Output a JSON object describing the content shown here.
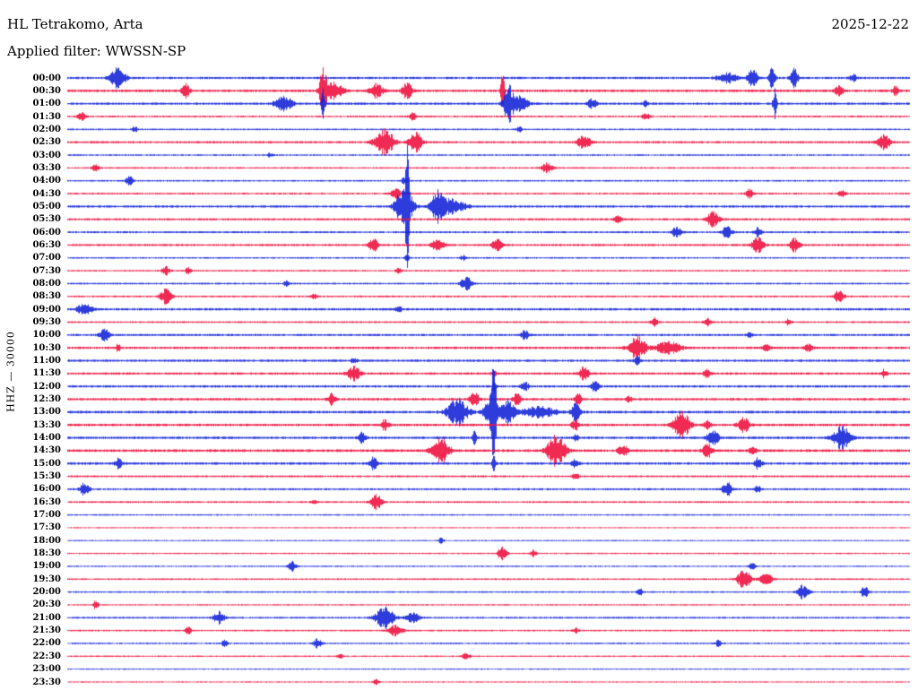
{
  "header": {
    "station": "HL Tetrakomo, Arta",
    "date": "2025-12-22",
    "filter": "Applied filter: WWSSN-SP"
  },
  "axis": {
    "label": "HHZ — 30000"
  },
  "chart_data": {
    "type": "line",
    "subtype": "helicorder-seismogram",
    "title": "HL Tetrakomo, Arta",
    "date": "2025-12-22",
    "filter": "WWSSN-SP",
    "channel": "HHZ",
    "scale": 30000,
    "trace_interval_minutes": 30,
    "x_range_minutes": [
      0,
      30
    ],
    "legend_position": "none",
    "grid": false,
    "colors": {
      "blue": "#1626d8",
      "red": "#ee1240"
    },
    "rows": [
      {
        "label": "00:00",
        "color": "blue",
        "noise": 1.3,
        "events": [
          [
            1.8,
            13,
            8
          ],
          [
            23.5,
            6,
            10
          ],
          [
            24.4,
            11,
            5
          ],
          [
            25.1,
            15,
            3
          ],
          [
            25.9,
            12,
            4
          ],
          [
            28.0,
            4,
            4
          ]
        ]
      },
      {
        "label": "00:30",
        "color": "red",
        "noise": 1.4,
        "events": [
          [
            4.2,
            9,
            4
          ],
          [
            9.1,
            26,
            4
          ],
          [
            9.5,
            9,
            10
          ],
          [
            11.0,
            8,
            7
          ],
          [
            12.1,
            11,
            5
          ],
          [
            15.5,
            24,
            2
          ],
          [
            27.5,
            5,
            5
          ],
          [
            29.5,
            6,
            3
          ]
        ]
      },
      {
        "label": "01:00",
        "color": "blue",
        "noise": 1.3,
        "events": [
          [
            7.7,
            9,
            9
          ],
          [
            9.1,
            18,
            2
          ],
          [
            15.7,
            21,
            5
          ],
          [
            16.1,
            8,
            10
          ],
          [
            18.7,
            5,
            5
          ],
          [
            20.6,
            3,
            3
          ],
          [
            25.2,
            17,
            2
          ]
        ]
      },
      {
        "label": "01:30",
        "color": "red",
        "noise": 1.0,
        "events": [
          [
            0.5,
            5,
            4
          ],
          [
            12.3,
            4,
            4
          ],
          [
            20.6,
            4,
            4
          ]
        ]
      },
      {
        "label": "02:00",
        "color": "blue",
        "noise": 0.9,
        "events": [
          [
            2.4,
            3,
            3
          ],
          [
            16.1,
            3,
            3
          ]
        ]
      },
      {
        "label": "02:30",
        "color": "red",
        "noise": 1.2,
        "events": [
          [
            11.3,
            15,
            10
          ],
          [
            12.4,
            11,
            7
          ],
          [
            18.4,
            8,
            7
          ],
          [
            29.1,
            8,
            7
          ]
        ]
      },
      {
        "label": "03:00",
        "color": "blue",
        "noise": 0.9,
        "events": [
          [
            7.2,
            2,
            3
          ]
        ]
      },
      {
        "label": "03:30",
        "color": "red",
        "noise": 0.9,
        "events": [
          [
            1.0,
            4,
            4
          ],
          [
            17.1,
            6,
            6
          ]
        ]
      },
      {
        "label": "04:00",
        "color": "blue",
        "noise": 0.9,
        "events": [
          [
            2.2,
            5,
            4
          ],
          [
            12.0,
            4,
            3
          ]
        ]
      },
      {
        "label": "04:30",
        "color": "red",
        "noise": 1.0,
        "events": [
          [
            11.7,
            6,
            5
          ],
          [
            24.3,
            5,
            4
          ],
          [
            27.6,
            4,
            4
          ]
        ]
      },
      {
        "label": "05:00",
        "color": "blue",
        "noise": 1.3,
        "events": [
          [
            12.0,
            24,
            9
          ],
          [
            12.1,
            62,
            2
          ],
          [
            13.2,
            17,
            7
          ],
          [
            13.7,
            8,
            14
          ]
        ]
      },
      {
        "label": "05:30",
        "color": "red",
        "noise": 1.2,
        "events": [
          [
            19.6,
            4,
            4
          ],
          [
            23.0,
            9,
            7
          ]
        ]
      },
      {
        "label": "06:00",
        "color": "blue",
        "noise": 1.1,
        "events": [
          [
            21.7,
            6,
            5
          ],
          [
            23.5,
            7,
            5
          ],
          [
            24.6,
            5,
            4
          ]
        ]
      },
      {
        "label": "06:30",
        "color": "red",
        "noise": 1.2,
        "events": [
          [
            10.9,
            7,
            5
          ],
          [
            13.2,
            9,
            6
          ],
          [
            15.3,
            7,
            5
          ],
          [
            24.6,
            9,
            6
          ],
          [
            25.9,
            8,
            5
          ]
        ]
      },
      {
        "label": "07:00",
        "color": "blue",
        "noise": 0.9,
        "events": [
          [
            12.1,
            7,
            2
          ],
          [
            14.1,
            3,
            3
          ]
        ]
      },
      {
        "label": "07:30",
        "color": "red",
        "noise": 0.9,
        "events": [
          [
            3.5,
            5,
            4
          ],
          [
            4.3,
            4,
            3
          ],
          [
            11.8,
            3,
            3
          ]
        ]
      },
      {
        "label": "08:00",
        "color": "blue",
        "noise": 1.0,
        "events": [
          [
            7.8,
            3,
            3
          ],
          [
            14.2,
            8,
            6
          ]
        ]
      },
      {
        "label": "08:30",
        "color": "red",
        "noise": 1.0,
        "events": [
          [
            3.5,
            9,
            6
          ],
          [
            8.8,
            3,
            3
          ],
          [
            27.5,
            8,
            5
          ]
        ]
      },
      {
        "label": "09:00",
        "color": "blue",
        "noise": 1.3,
        "events": [
          [
            0.6,
            8,
            7
          ],
          [
            11.8,
            4,
            3
          ]
        ]
      },
      {
        "label": "09:30",
        "color": "red",
        "noise": 1.0,
        "events": [
          [
            20.9,
            5,
            4
          ],
          [
            22.8,
            4,
            4
          ],
          [
            25.7,
            4,
            3
          ]
        ]
      },
      {
        "label": "10:00",
        "color": "blue",
        "noise": 1.2,
        "events": [
          [
            1.3,
            8,
            5
          ],
          [
            16.3,
            5,
            4
          ],
          [
            24.3,
            3,
            3
          ]
        ]
      },
      {
        "label": "10:30",
        "color": "red",
        "noise": 1.3,
        "events": [
          [
            1.8,
            4,
            3
          ],
          [
            20.3,
            13,
            9
          ],
          [
            21.4,
            7,
            13
          ],
          [
            24.9,
            5,
            4
          ],
          [
            26.4,
            4,
            4
          ]
        ]
      },
      {
        "label": "11:00",
        "color": "blue",
        "noise": 1.3,
        "events": [
          [
            10.2,
            3,
            3
          ],
          [
            20.3,
            5,
            3
          ]
        ]
      },
      {
        "label": "11:30",
        "color": "red",
        "noise": 1.3,
        "events": [
          [
            10.2,
            8,
            7
          ],
          [
            15.2,
            4,
            3
          ],
          [
            18.4,
            8,
            5
          ],
          [
            22.8,
            5,
            4
          ],
          [
            29.1,
            5,
            3
          ]
        ]
      },
      {
        "label": "12:00",
        "color": "blue",
        "noise": 1.3,
        "events": [
          [
            15.2,
            6,
            2
          ],
          [
            16.3,
            5,
            4
          ],
          [
            18.8,
            7,
            4
          ]
        ]
      },
      {
        "label": "12:30",
        "color": "red",
        "noise": 1.4,
        "events": [
          [
            9.4,
            6,
            4
          ],
          [
            14.5,
            7,
            5
          ],
          [
            16.0,
            7,
            4
          ],
          [
            18.2,
            7,
            4
          ],
          [
            20.0,
            4,
            3
          ]
        ]
      },
      {
        "label": "13:00",
        "color": "blue",
        "noise": 1.5,
        "events": [
          [
            13.9,
            15,
            11
          ],
          [
            15.1,
            21,
            7
          ],
          [
            15.2,
            58,
            2
          ],
          [
            15.7,
            15,
            7
          ],
          [
            16.8,
            6,
            18
          ],
          [
            18.1,
            10,
            5
          ]
        ]
      },
      {
        "label": "13:30",
        "color": "red",
        "noise": 1.4,
        "events": [
          [
            11.3,
            6,
            4
          ],
          [
            18.1,
            6,
            4
          ],
          [
            21.9,
            15,
            9
          ],
          [
            22.8,
            5,
            4
          ],
          [
            24.1,
            8,
            6
          ]
        ]
      },
      {
        "label": "14:00",
        "color": "blue",
        "noise": 1.4,
        "events": [
          [
            10.5,
            6,
            4
          ],
          [
            14.5,
            10,
            2
          ],
          [
            18.1,
            4,
            3
          ],
          [
            23.0,
            9,
            6
          ],
          [
            27.6,
            13,
            9
          ]
        ]
      },
      {
        "label": "14:30",
        "color": "red",
        "noise": 1.5,
        "events": [
          [
            13.3,
            15,
            9
          ],
          [
            17.4,
            17,
            10
          ],
          [
            19.8,
            7,
            5
          ],
          [
            22.8,
            8,
            5
          ],
          [
            24.4,
            5,
            4
          ]
        ]
      },
      {
        "label": "15:00",
        "color": "blue",
        "noise": 1.4,
        "events": [
          [
            1.8,
            6,
            4
          ],
          [
            10.9,
            7,
            4
          ],
          [
            15.2,
            9,
            2
          ],
          [
            18.1,
            5,
            4
          ],
          [
            24.6,
            6,
            4
          ]
        ]
      },
      {
        "label": "15:30",
        "color": "red",
        "noise": 1.1,
        "events": [
          [
            18.1,
            4,
            3
          ]
        ]
      },
      {
        "label": "16:00",
        "color": "blue",
        "noise": 1.1,
        "events": [
          [
            0.6,
            7,
            5
          ],
          [
            23.5,
            8,
            5
          ],
          [
            24.6,
            4,
            3
          ]
        ]
      },
      {
        "label": "16:30",
        "color": "red",
        "noise": 1.0,
        "events": [
          [
            8.8,
            3,
            3
          ],
          [
            11.0,
            9,
            6
          ]
        ]
      },
      {
        "label": "17:00",
        "color": "blue",
        "noise": 0.8,
        "events": []
      },
      {
        "label": "17:30",
        "color": "red",
        "noise": 0.7,
        "events": []
      },
      {
        "label": "18:00",
        "color": "blue",
        "noise": 0.7,
        "events": [
          [
            13.3,
            3,
            3
          ]
        ]
      },
      {
        "label": "18:30",
        "color": "red",
        "noise": 0.8,
        "events": [
          [
            15.5,
            8,
            5
          ],
          [
            16.6,
            4,
            3
          ]
        ]
      },
      {
        "label": "19:00",
        "color": "blue",
        "noise": 0.8,
        "events": [
          [
            8.0,
            6,
            4
          ],
          [
            24.4,
            4,
            3
          ]
        ]
      },
      {
        "label": "19:30",
        "color": "red",
        "noise": 0.9,
        "events": [
          [
            24.1,
            12,
            7
          ],
          [
            24.9,
            6,
            7
          ]
        ]
      },
      {
        "label": "20:00",
        "color": "blue",
        "noise": 0.9,
        "events": [
          [
            20.4,
            4,
            3
          ],
          [
            26.2,
            8,
            6
          ],
          [
            28.4,
            7,
            4
          ]
        ]
      },
      {
        "label": "20:30",
        "color": "red",
        "noise": 0.8,
        "events": [
          [
            1.0,
            5,
            3
          ]
        ]
      },
      {
        "label": "21:00",
        "color": "blue",
        "noise": 1.0,
        "events": [
          [
            5.4,
            7,
            6
          ],
          [
            11.3,
            12,
            10
          ],
          [
            12.3,
            6,
            7
          ]
        ]
      },
      {
        "label": "21:30",
        "color": "red",
        "noise": 0.9,
        "events": [
          [
            4.3,
            4,
            3
          ],
          [
            11.7,
            6,
            8
          ],
          [
            18.1,
            3,
            3
          ]
        ]
      },
      {
        "label": "22:00",
        "color": "blue",
        "noise": 0.9,
        "events": [
          [
            5.6,
            4,
            3
          ],
          [
            8.9,
            6,
            4
          ],
          [
            23.2,
            4,
            3
          ]
        ]
      },
      {
        "label": "22:30",
        "color": "red",
        "noise": 0.8,
        "events": [
          [
            9.7,
            3,
            3
          ],
          [
            14.2,
            4,
            4
          ]
        ]
      },
      {
        "label": "23:00",
        "color": "blue",
        "noise": 0.7,
        "events": []
      },
      {
        "label": "23:30",
        "color": "red",
        "noise": 0.7,
        "events": [
          [
            11.0,
            3,
            3
          ]
        ]
      }
    ]
  }
}
